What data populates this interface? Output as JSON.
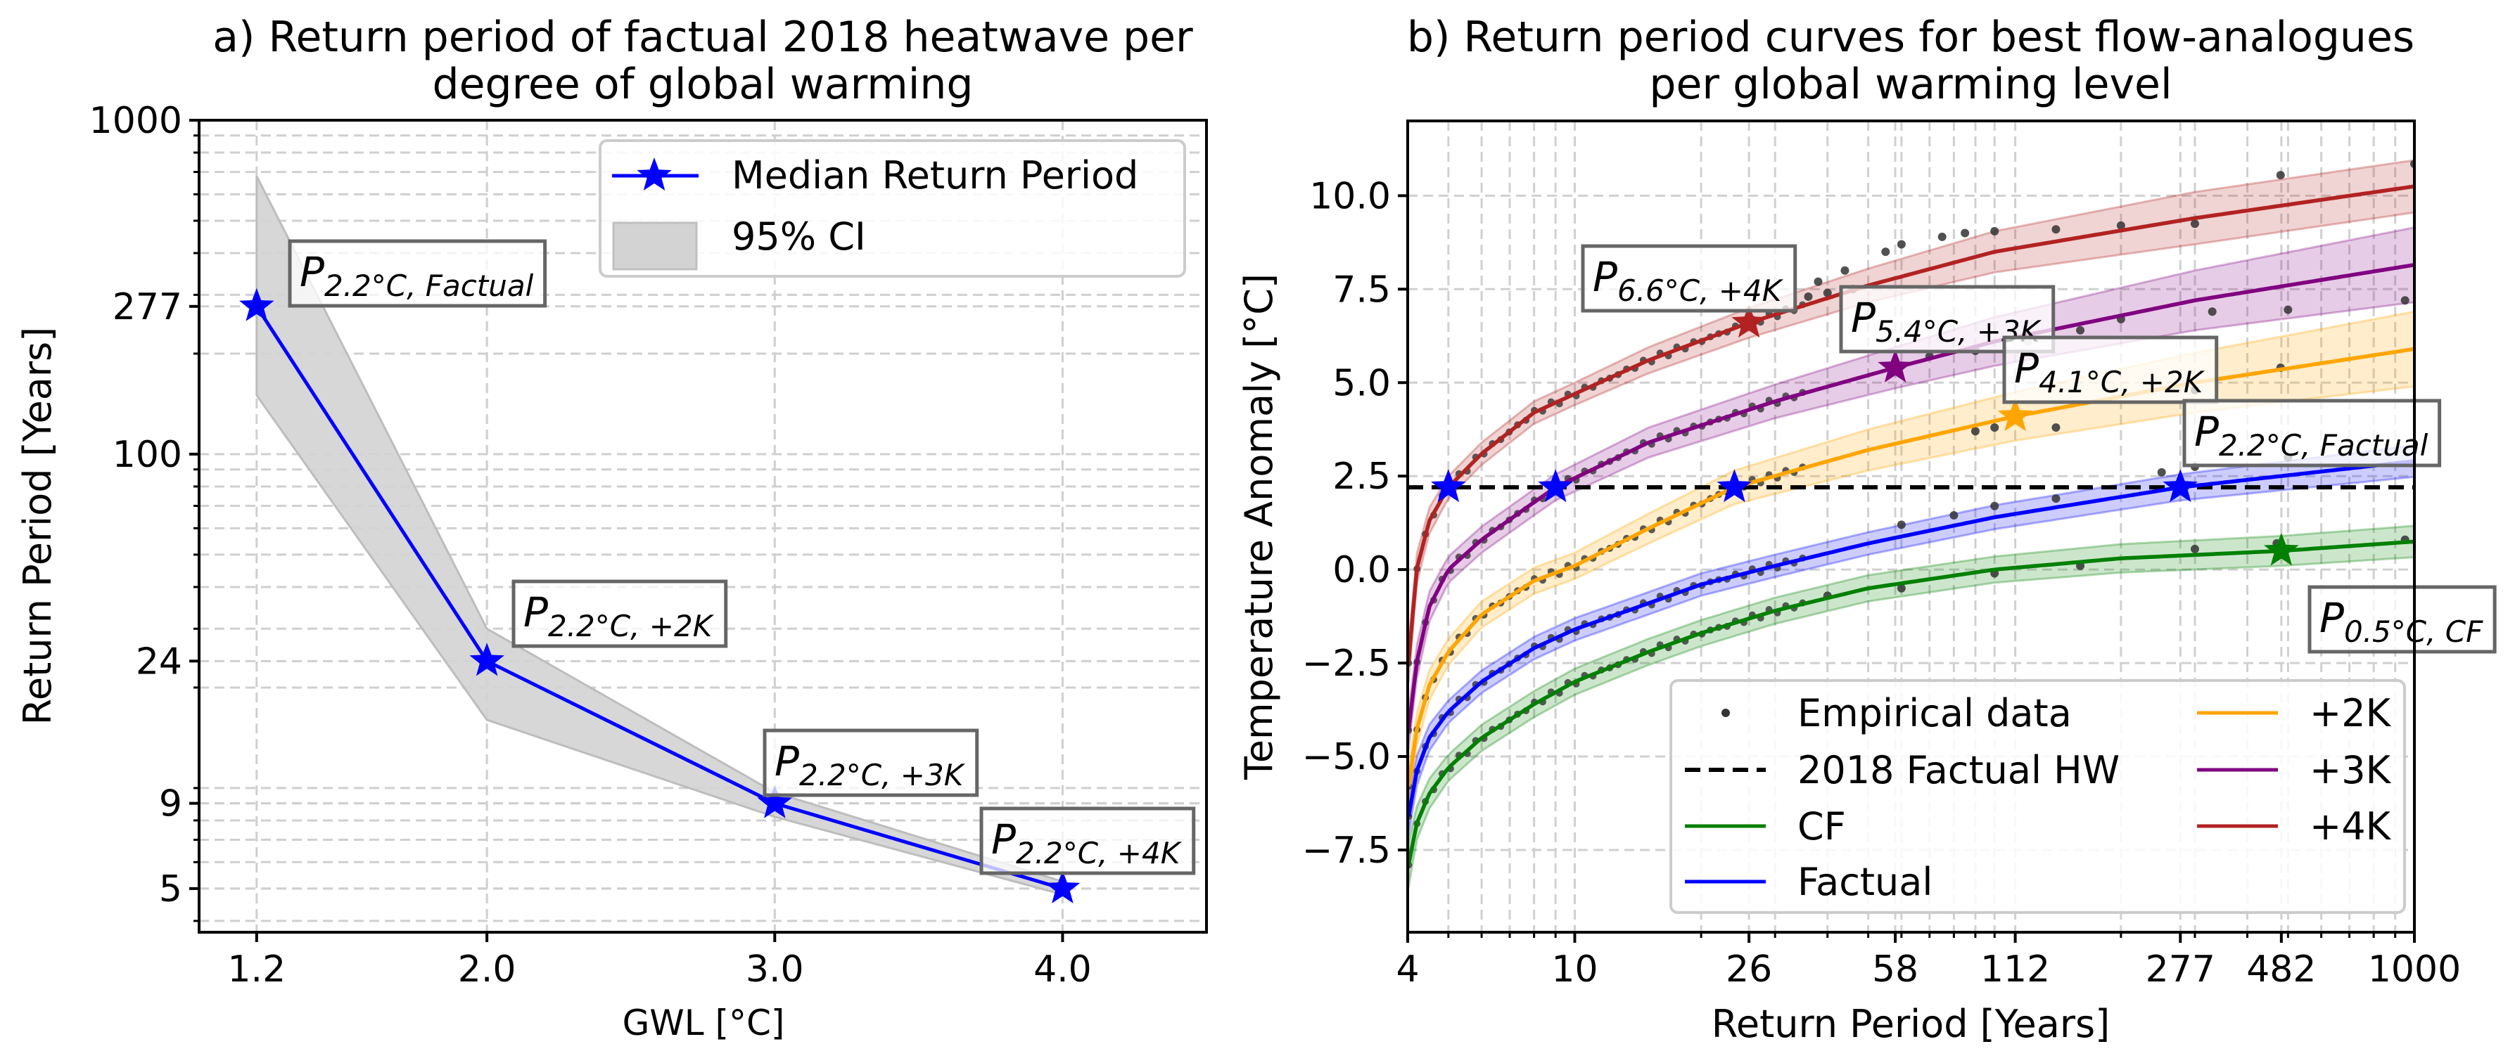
{
  "chart_data": [
    {
      "type": "line",
      "title": "a) Return period of factual 2018 heatwave per degree of global warming",
      "title_lines": [
        "a) Return period of factual 2018 heatwave per",
        "degree of global warming"
      ],
      "xlabel": "GWL [°C]",
      "ylabel": "Return Period [Years]",
      "xscale": "linear",
      "yscale": "log",
      "xlim": [
        1.0,
        4.5
      ],
      "ylim": [
        3.7,
        1000
      ],
      "grid": true,
      "xticks": [
        1.2,
        2.0,
        3.0,
        4.0
      ],
      "xtick_labels": [
        "1.2",
        "2.0",
        "3.0",
        "4.0"
      ],
      "yticks": [
        {
          "value": 1000,
          "label": "1000",
          "color": "#000000"
        },
        {
          "value": 277,
          "label": "277",
          "color": "#0000ff"
        },
        {
          "value": 100,
          "label": "100",
          "color": "#000000"
        },
        {
          "value": 24,
          "label": "24",
          "color": "#0000ff"
        },
        {
          "value": 9,
          "label": "9",
          "color": "#0000ff"
        },
        {
          "value": 5,
          "label": "5",
          "color": "#0000ff"
        }
      ],
      "series": [
        {
          "name": "Median Return Period",
          "color": "#0000ff",
          "marker": "star",
          "x": [
            1.2,
            2.0,
            3.0,
            4.0
          ],
          "y": [
            277,
            24,
            9,
            5
          ]
        }
      ],
      "ci": {
        "name": "95% CI",
        "color": "#d3d3d3",
        "x": [
          1.2,
          2.0,
          3.0,
          4.0
        ],
        "lower": [
          150,
          16,
          8.2,
          4.8
        ],
        "upper": [
          680,
          30,
          9.7,
          5.25
        ]
      },
      "annotations": [
        {
          "main": "P",
          "sub": "2.2°C, Factual",
          "x": 1.2,
          "y": 277
        },
        {
          "main": "P",
          "sub": "2.2°C, +2K",
          "x": 2.0,
          "y": 24
        },
        {
          "main": "P",
          "sub": "2.2°C, +3K",
          "x": 3.0,
          "y": 9
        },
        {
          "main": "P",
          "sub": "2.2°C, +4K",
          "x": 4.0,
          "y": 5
        }
      ],
      "legend": {
        "position": "top-right",
        "entries": [
          {
            "label": "Median Return Period",
            "kind": "line-star",
            "color": "#0000ff"
          },
          {
            "label": "95% CI",
            "kind": "patch",
            "color": "#d3d3d3"
          }
        ]
      }
    },
    {
      "type": "line",
      "title": "b) Return period curves for best flow-analogues per global warming level",
      "title_lines": [
        "b) Return period curves for best flow-analogues",
        "per global warming level"
      ],
      "xlabel": "Return Period [Years]",
      "ylabel": "Temperature Anomaly [°C]",
      "xscale": "log",
      "yscale": "linear",
      "xlim": [
        4,
        1000
      ],
      "ylim": [
        -9.7,
        12.0
      ],
      "grid": true,
      "xticks": [
        {
          "value": 4,
          "label": "4",
          "color": "#000000"
        },
        {
          "value": 10,
          "label": "10",
          "color": "#000000"
        },
        {
          "value": 26,
          "label": "26",
          "color": "#b22222"
        },
        {
          "value": 58,
          "label": "58",
          "color": "#800080"
        },
        {
          "value": 112,
          "label": "112",
          "color": "#ffa500"
        },
        {
          "value": 277,
          "label": "277",
          "color": "#0000ff"
        },
        {
          "value": 482,
          "label": "482",
          "color": "#008000"
        },
        {
          "value": 1000,
          "label": "1000",
          "color": "#000000"
        }
      ],
      "yticks": [
        -7.5,
        -5.0,
        -2.5,
        0.0,
        2.5,
        5.0,
        7.5,
        10.0
      ],
      "ytick_labels": [
        "−7.5",
        "−5.0",
        "−2.5",
        "0.0",
        "2.5",
        "5.0",
        "7.5",
        "10.0"
      ],
      "hline": {
        "name": "2018 Factual HW",
        "y": 2.2,
        "color": "#000000",
        "style": "dashed"
      },
      "series": [
        {
          "name": "CF",
          "color": "#008000",
          "x": [
            4.02,
            4.2,
            4.5,
            5,
            6,
            8,
            10,
            15,
            20,
            30,
            50,
            100,
            200,
            482,
            1000
          ],
          "y": [
            -7.9,
            -6.8,
            -6.0,
            -5.3,
            -4.5,
            -3.6,
            -3.0,
            -2.2,
            -1.7,
            -1.1,
            -0.5,
            0.0,
            0.3,
            0.5,
            0.75
          ],
          "ci_halfwidth": [
            0.6,
            0.45,
            0.4,
            0.35,
            0.35,
            0.35,
            0.35,
            0.35,
            0.35,
            0.35,
            0.35,
            0.35,
            0.38,
            0.4,
            0.42
          ]
        },
        {
          "name": "Factual",
          "color": "#0000ff",
          "x": [
            4.02,
            4.2,
            4.5,
            5,
            6,
            8,
            10,
            15,
            20,
            30,
            50,
            100,
            277,
            1000
          ],
          "y": [
            -6.6,
            -5.4,
            -4.5,
            -3.8,
            -3.0,
            -2.1,
            -1.6,
            -0.9,
            -0.4,
            0.1,
            0.7,
            1.4,
            2.2,
            2.9
          ],
          "ci_halfwidth": [
            0.5,
            0.4,
            0.35,
            0.3,
            0.3,
            0.3,
            0.3,
            0.3,
            0.3,
            0.3,
            0.3,
            0.32,
            0.35,
            0.42
          ]
        },
        {
          "name": "+2K",
          "color": "#ffa500",
          "x": [
            4.02,
            4.2,
            4.5,
            5,
            6,
            8,
            10,
            15,
            24,
            50,
            112,
            300,
            1000
          ],
          "y": [
            -5.8,
            -4.3,
            -3.1,
            -2.2,
            -1.2,
            -0.3,
            0.1,
            1.1,
            2.2,
            3.2,
            4.1,
            5.0,
            5.9
          ],
          "ci_halfwidth": [
            0.5,
            0.45,
            0.4,
            0.35,
            0.35,
            0.35,
            0.35,
            0.4,
            0.45,
            0.55,
            0.65,
            0.8,
            1.0
          ]
        },
        {
          "name": "+3K",
          "color": "#800080",
          "x": [
            4.02,
            4.2,
            4.5,
            5,
            6,
            8,
            9,
            15,
            30,
            58,
            100,
            300,
            1000
          ],
          "y": [
            -4.3,
            -2.5,
            -1.0,
            0.0,
            0.8,
            1.8,
            2.2,
            3.4,
            4.5,
            5.4,
            6.1,
            7.2,
            8.15
          ],
          "ci_halfwidth": [
            0.5,
            0.45,
            0.4,
            0.35,
            0.35,
            0.35,
            0.35,
            0.4,
            0.45,
            0.55,
            0.65,
            0.8,
            1.0
          ]
        },
        {
          "name": "+4K",
          "color": "#b22222",
          "x": [
            4.02,
            4.2,
            4.5,
            5,
            6,
            8,
            10,
            15,
            26,
            50,
            100,
            300,
            1000
          ],
          "y": [
            -2.5,
            0.0,
            1.3,
            2.2,
            3.1,
            4.2,
            4.7,
            5.6,
            6.6,
            7.6,
            8.5,
            9.4,
            10.25
          ],
          "ci_halfwidth": [
            0.5,
            0.4,
            0.35,
            0.3,
            0.3,
            0.3,
            0.3,
            0.35,
            0.4,
            0.45,
            0.55,
            0.7,
            0.7
          ]
        }
      ],
      "empirical": {
        "name": "Empirical data",
        "color": "#333333",
        "points": [
          [
            38,
            7.7
          ],
          [
            44,
            8.0
          ],
          [
            55,
            8.5
          ],
          [
            60,
            8.7
          ],
          [
            75,
            8.9
          ],
          [
            85,
            9.0
          ],
          [
            100,
            9.05
          ],
          [
            140,
            9.1
          ],
          [
            200,
            9.2
          ],
          [
            300,
            9.25
          ],
          [
            480,
            10.55
          ],
          [
            1000,
            10.85
          ],
          [
            36,
            7.3
          ],
          [
            40,
            7.4
          ],
          [
            46,
            7.5
          ],
          [
            70,
            5.7
          ],
          [
            90,
            5.85
          ],
          [
            120,
            6.1
          ],
          [
            160,
            6.4
          ],
          [
            200,
            6.7
          ],
          [
            330,
            6.9
          ],
          [
            500,
            6.95
          ],
          [
            950,
            7.2
          ],
          [
            90,
            3.7
          ],
          [
            100,
            3.8
          ],
          [
            140,
            3.8
          ],
          [
            300,
            4.8
          ],
          [
            480,
            5.4
          ],
          [
            60,
            1.2
          ],
          [
            80,
            1.45
          ],
          [
            100,
            1.7
          ],
          [
            140,
            1.9
          ],
          [
            250,
            2.6
          ],
          [
            300,
            2.75
          ],
          [
            500,
            3.0
          ],
          [
            40,
            -0.7
          ],
          [
            60,
            -0.5
          ],
          [
            100,
            -0.1
          ],
          [
            160,
            0.1
          ],
          [
            300,
            0.55
          ],
          [
            470,
            0.7
          ],
          [
            950,
            0.8
          ]
        ]
      },
      "return_period_stars": [
        {
          "x": 5,
          "y": 2.2,
          "color": "#0000ff"
        },
        {
          "x": 9,
          "y": 2.2,
          "color": "#0000ff"
        },
        {
          "x": 24,
          "y": 2.2,
          "color": "#0000ff"
        },
        {
          "x": 277,
          "y": 2.2,
          "color": "#0000ff"
        },
        {
          "x": 26,
          "y": 6.6,
          "color": "#b22222"
        },
        {
          "x": 58,
          "y": 5.4,
          "color": "#800080"
        },
        {
          "x": 112,
          "y": 4.1,
          "color": "#ffa500"
        },
        {
          "x": 482,
          "y": 0.5,
          "color": "#008000"
        }
      ],
      "annotations": [
        {
          "main": "P",
          "sub": "6.6°C, +4K"
        },
        {
          "main": "P",
          "sub": "5.4°C, +3K"
        },
        {
          "main": "P",
          "sub": "4.1°C, +2K"
        },
        {
          "main": "P",
          "sub": "2.2°C, Factual"
        },
        {
          "main": "P",
          "sub": "0.5°C, CF"
        }
      ],
      "legend": {
        "position": "lower-right",
        "columns": 2,
        "entries": [
          {
            "label": "Empirical data",
            "kind": "dot",
            "color": "#333333"
          },
          {
            "label": "2018 Factual HW",
            "kind": "dashed",
            "color": "#000000"
          },
          {
            "label": "CF",
            "kind": "line",
            "color": "#008000"
          },
          {
            "label": "Factual",
            "kind": "line",
            "color": "#0000ff"
          },
          {
            "label": "+2K",
            "kind": "line",
            "color": "#ffa500"
          },
          {
            "label": "+3K",
            "kind": "line",
            "color": "#800080"
          },
          {
            "label": "+4K",
            "kind": "line",
            "color": "#b22222"
          }
        ]
      }
    }
  ]
}
